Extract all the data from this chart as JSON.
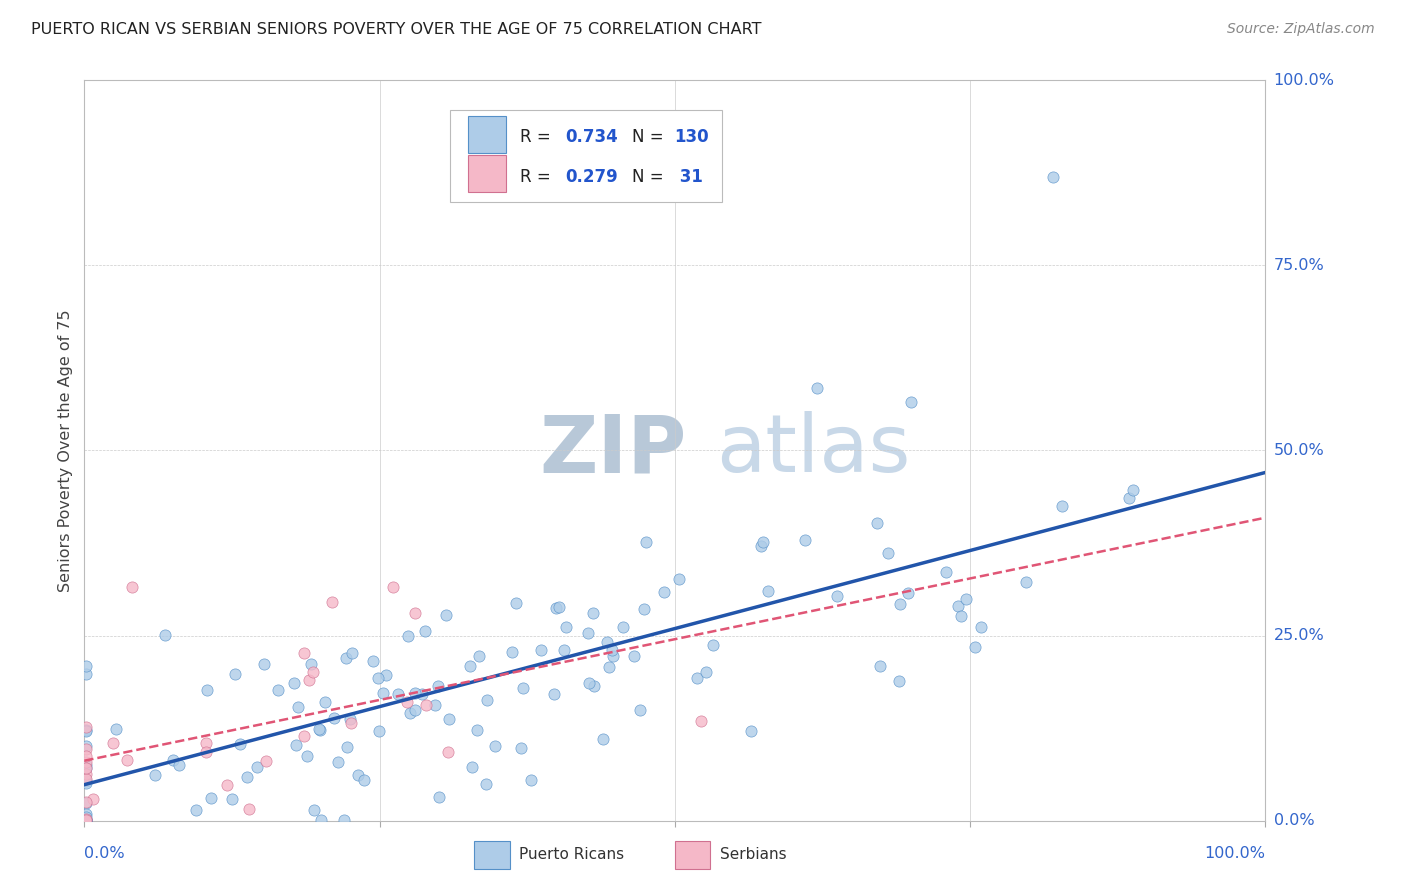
{
  "title": "PUERTO RICAN VS SERBIAN SENIORS POVERTY OVER THE AGE OF 75 CORRELATION CHART",
  "source": "Source: ZipAtlas.com",
  "ylabel": "Seniors Poverty Over the Age of 75",
  "ytick_labels": [
    "0.0%",
    "25.0%",
    "50.0%",
    "75.0%",
    "100.0%"
  ],
  "ytick_vals": [
    0.0,
    0.25,
    0.5,
    0.75,
    1.0
  ],
  "pr_R": 0.734,
  "pr_N": 130,
  "sr_R": 0.279,
  "sr_N": 31,
  "pr_color": "#aecce8",
  "sr_color": "#f5b8c8",
  "pr_edge_color": "#5590c8",
  "sr_edge_color": "#d07090",
  "pr_line_color": "#2255aa",
  "sr_line_color": "#e05575",
  "background_color": "#ffffff",
  "grid_color": "#cccccc",
  "title_color": "#222222",
  "legend_text_color": "#2255cc",
  "watermark_color": "#ccd8e8",
  "axis_label_color": "#3366cc",
  "seed": 7
}
